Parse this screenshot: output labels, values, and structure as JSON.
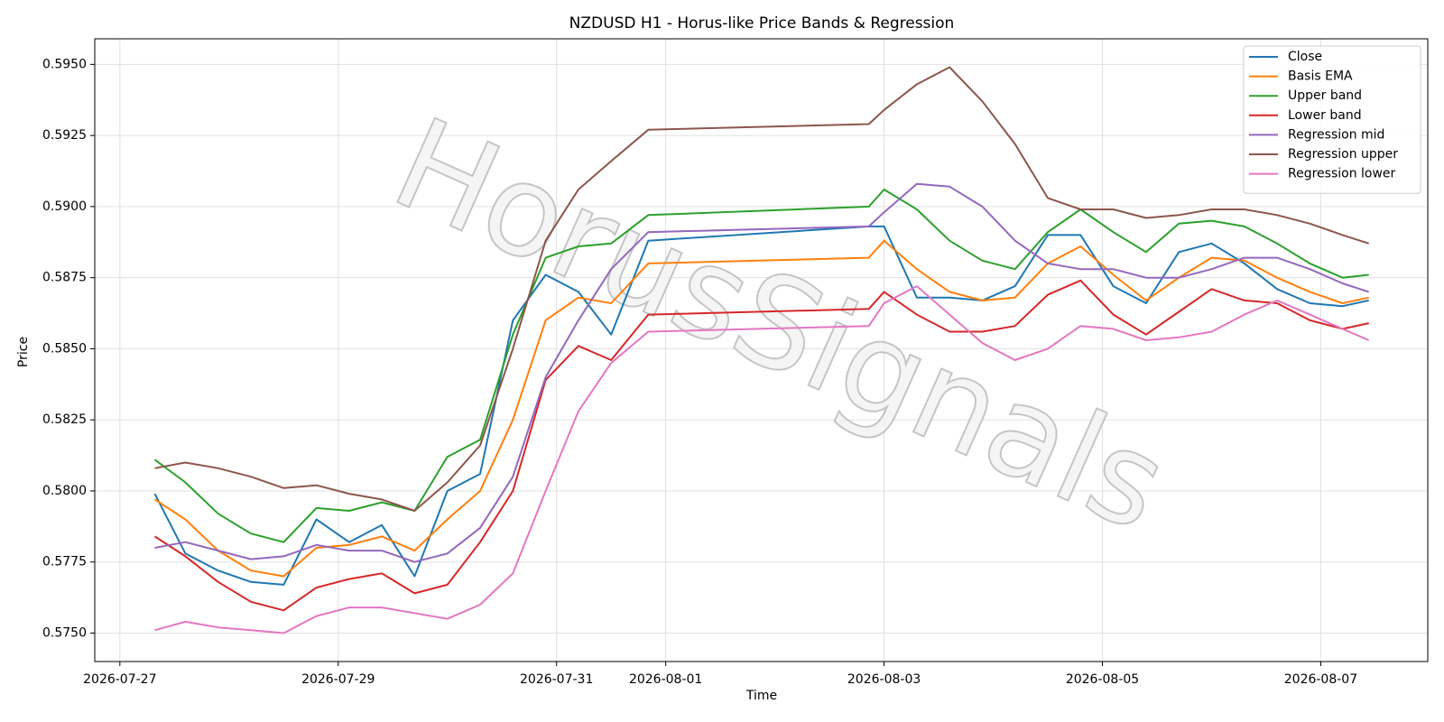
{
  "chart_data": {
    "type": "line",
    "title": "NZDUSD H1 - Horus-like Price Bands & Regression",
    "x_label": "Time",
    "y_label": "Price",
    "watermark": "HorusSignals",
    "x": [
      0.32,
      0.6,
      0.9,
      1.2,
      1.5,
      1.8,
      2.1,
      2.4,
      2.7,
      3.0,
      3.3,
      3.6,
      3.9,
      4.2,
      4.5,
      4.84,
      6.86,
      7.0,
      7.3,
      7.6,
      7.9,
      8.2,
      8.5,
      8.8,
      9.1,
      9.4,
      9.7,
      10.0,
      10.3,
      10.6,
      10.9,
      11.2,
      11.44
    ],
    "series": [
      {
        "name": "Close",
        "color": "#1f77b4",
        "values": [
          0.5799,
          0.5778,
          0.5772,
          0.5768,
          0.5767,
          0.579,
          0.5782,
          0.5788,
          0.577,
          0.58,
          0.5806,
          0.586,
          0.5876,
          0.587,
          0.5855,
          0.5888,
          0.5893,
          0.5893,
          0.5868,
          0.5868,
          0.5867,
          0.5872,
          0.589,
          0.589,
          0.5872,
          0.5866,
          0.5884,
          0.5887,
          0.588,
          0.5871,
          0.5866,
          0.5865,
          0.5867
        ]
      },
      {
        "name": "Basis EMA",
        "color": "#ff7f0e",
        "values": [
          0.5797,
          0.579,
          0.5779,
          0.5772,
          0.577,
          0.578,
          0.5781,
          0.5784,
          0.5779,
          0.579,
          0.58,
          0.5825,
          0.586,
          0.5868,
          0.5866,
          0.588,
          0.5882,
          0.5888,
          0.5878,
          0.587,
          0.5867,
          0.5868,
          0.588,
          0.5886,
          0.5876,
          0.5867,
          0.5875,
          0.5882,
          0.5881,
          0.5875,
          0.587,
          0.5866,
          0.5868
        ]
      },
      {
        "name": "Upper band",
        "color": "#2ca02c",
        "values": [
          0.5811,
          0.5803,
          0.5792,
          0.5785,
          0.5782,
          0.5794,
          0.5793,
          0.5796,
          0.5793,
          0.5812,
          0.5818,
          0.5855,
          0.5882,
          0.5886,
          0.5887,
          0.5897,
          0.59,
          0.5906,
          0.5899,
          0.5888,
          0.5881,
          0.5878,
          0.5891,
          0.5899,
          0.5891,
          0.5884,
          0.5894,
          0.5895,
          0.5893,
          0.5887,
          0.588,
          0.5875,
          0.5876
        ]
      },
      {
        "name": "Lower band",
        "color": "#d62728",
        "values": [
          0.5784,
          0.5777,
          0.5768,
          0.5761,
          0.5758,
          0.5766,
          0.5769,
          0.5771,
          0.5764,
          0.5767,
          0.5782,
          0.58,
          0.5839,
          0.5851,
          0.5846,
          0.5862,
          0.5864,
          0.587,
          0.5862,
          0.5856,
          0.5856,
          0.5858,
          0.5869,
          0.5874,
          0.5862,
          0.5855,
          0.5863,
          0.5871,
          0.5867,
          0.5866,
          0.586,
          0.5857,
          0.5859
        ]
      },
      {
        "name": "Regression mid",
        "color": "#9467bd",
        "values": [
          0.578,
          0.5782,
          0.5779,
          0.5776,
          0.5777,
          0.5781,
          0.5779,
          0.5779,
          0.5775,
          0.5778,
          0.5787,
          0.5805,
          0.584,
          0.586,
          0.5878,
          0.5891,
          0.5893,
          0.5898,
          0.5908,
          0.5907,
          0.59,
          0.5888,
          0.588,
          0.5878,
          0.5878,
          0.5875,
          0.5875,
          0.5878,
          0.5882,
          0.5882,
          0.5878,
          0.5873,
          0.587
        ]
      },
      {
        "name": "Regression upper",
        "color": "#8c564b",
        "values": [
          0.5808,
          0.581,
          0.5808,
          0.5805,
          0.5801,
          0.5802,
          0.5799,
          0.5797,
          0.5793,
          0.5803,
          0.5816,
          0.585,
          0.5888,
          0.5906,
          0.5916,
          0.5927,
          0.5929,
          0.5934,
          0.5943,
          0.5949,
          0.5937,
          0.5922,
          0.5903,
          0.5899,
          0.5899,
          0.5896,
          0.5897,
          0.5899,
          0.5899,
          0.5897,
          0.5894,
          0.589,
          0.5887
        ]
      },
      {
        "name": "Regression lower",
        "color": "#e377c2",
        "values": [
          0.5751,
          0.5754,
          0.5752,
          0.5751,
          0.575,
          0.5756,
          0.5759,
          0.5759,
          0.5757,
          0.5755,
          0.576,
          0.5771,
          0.58,
          0.5828,
          0.5845,
          0.5856,
          0.5858,
          0.5866,
          0.5872,
          0.5862,
          0.5852,
          0.5846,
          0.585,
          0.5858,
          0.5857,
          0.5853,
          0.5854,
          0.5856,
          0.5862,
          0.5867,
          0.5862,
          0.5857,
          0.5853
        ]
      }
    ],
    "xlim": [
      -0.23,
      11.98
    ],
    "xticks": [
      {
        "value": 0,
        "label": "2026-07-27"
      },
      {
        "value": 2,
        "label": "2026-07-29"
      },
      {
        "value": 4,
        "label": "2026-07-31"
      },
      {
        "value": 5,
        "label": "2026-08-01"
      },
      {
        "value": 7,
        "label": "2026-08-03"
      },
      {
        "value": 9,
        "label": "2026-08-05"
      },
      {
        "value": 11,
        "label": "2026-08-07"
      }
    ],
    "ylim": [
      0.574,
      0.5959
    ],
    "yticks": [
      {
        "value": 0.575,
        "label": "0.5750"
      },
      {
        "value": 0.5775,
        "label": "0.5775"
      },
      {
        "value": 0.58,
        "label": "0.5800"
      },
      {
        "value": 0.5825,
        "label": "0.5825"
      },
      {
        "value": 0.585,
        "label": "0.5850"
      },
      {
        "value": 0.5875,
        "label": "0.5875"
      },
      {
        "value": 0.59,
        "label": "0.5900"
      },
      {
        "value": 0.5925,
        "label": "0.5925"
      },
      {
        "value": 0.595,
        "label": "0.5950"
      }
    ],
    "grid": true,
    "legend": "upper right"
  }
}
